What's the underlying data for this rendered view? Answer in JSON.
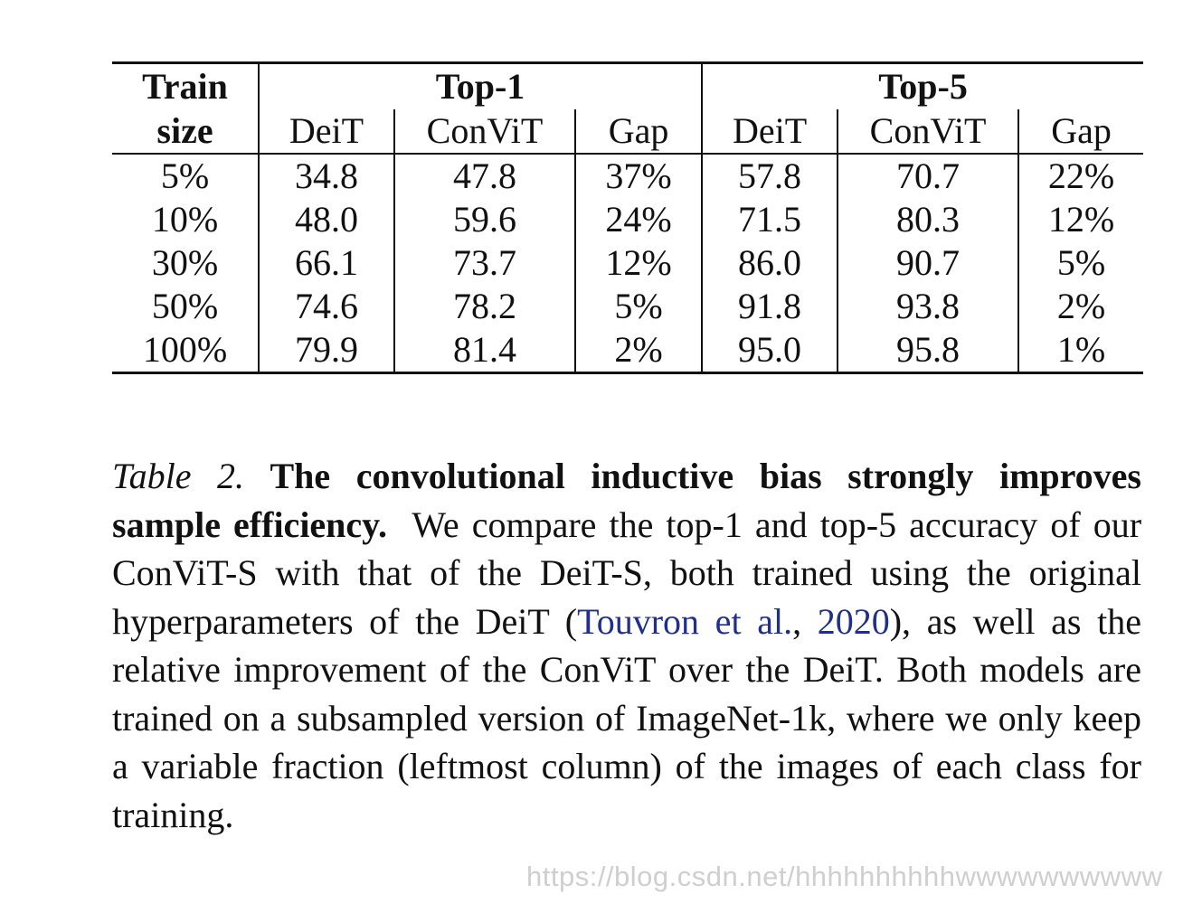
{
  "table": {
    "header": {
      "train_size_line1": "Train",
      "train_size_line2": "size",
      "group_top1": "Top-1",
      "group_top5": "Top-5",
      "subcolumns": [
        "DeiT",
        "ConViT",
        "Gap",
        "DeiT",
        "ConViT",
        "Gap"
      ]
    },
    "rows": [
      {
        "train_size": "5%",
        "top1_deit": "34.8",
        "top1_convit": "47.8",
        "top1_gap": "37%",
        "top5_deit": "57.8",
        "top5_convit": "70.7",
        "top5_gap": "22%"
      },
      {
        "train_size": "10%",
        "top1_deit": "48.0",
        "top1_convit": "59.6",
        "top1_gap": "24%",
        "top5_deit": "71.5",
        "top5_convit": "80.3",
        "top5_gap": "12%"
      },
      {
        "train_size": "30%",
        "top1_deit": "66.1",
        "top1_convit": "73.7",
        "top1_gap": "12%",
        "top5_deit": "86.0",
        "top5_convit": "90.7",
        "top5_gap": "5%"
      },
      {
        "train_size": "50%",
        "top1_deit": "74.6",
        "top1_convit": "78.2",
        "top1_gap": "5%",
        "top5_deit": "91.8",
        "top5_convit": "93.8",
        "top5_gap": "2%"
      },
      {
        "train_size": "100%",
        "top1_deit": "79.9",
        "top1_convit": "81.4",
        "top1_gap": "2%",
        "top5_deit": "95.0",
        "top5_convit": "95.8",
        "top5_gap": "1%"
      }
    ]
  },
  "caption": {
    "label": "Table 2.",
    "title": "The convolutional inductive bias strongly improves sample efficiency.",
    "body_part1": "We compare the top-1 and top-5 accuracy of our ConViT-S with that of the DeiT-S, both trained using the original hyperparameters of the DeiT (",
    "citation_authors": "Touvron et al.",
    "citation_sep": ", ",
    "citation_year": "2020",
    "body_part2": "), as well as the relative improvement of the ConViT over the DeiT. Both models are trained on a subsampled version of ImageNet-1k, where we only keep a variable fraction (leftmost column) of the images of each class for training."
  },
  "watermark": "https://blog.csdn.net/hhhhhhhhhhwwwwwwwwww",
  "colors": {
    "text": "#111111",
    "citation": "#1f2f8a",
    "watermark": "#cfcfcf"
  }
}
